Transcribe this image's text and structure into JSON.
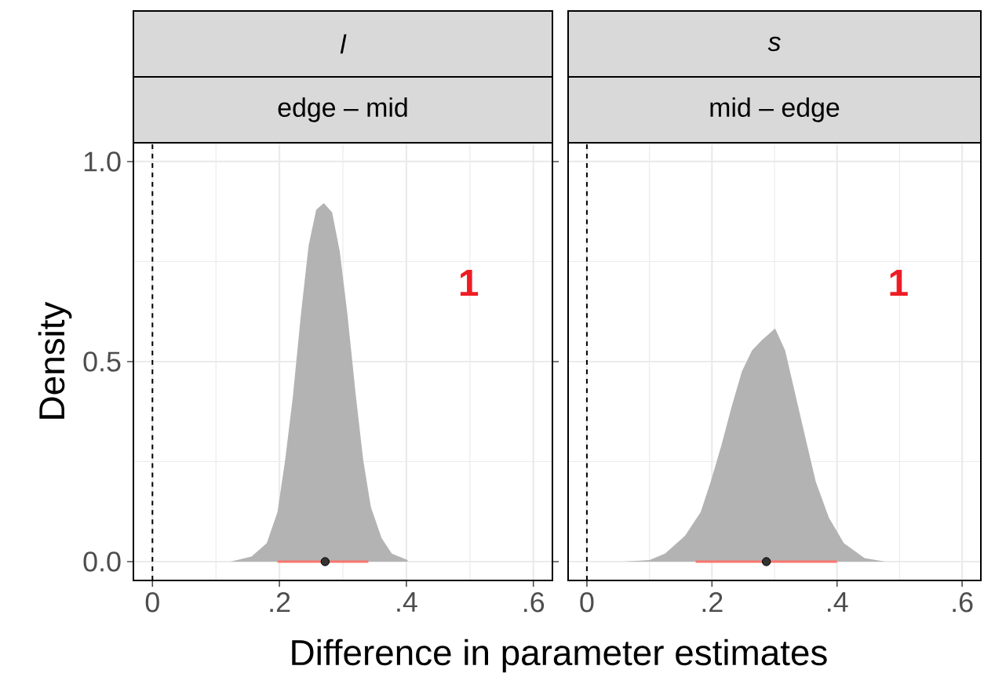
{
  "chart_data": [
    {
      "type": "area",
      "title": "l",
      "subtitle": "edge – mid",
      "ylabel": "Density",
      "xlabel": "Difference in parameter estimates",
      "xlim": [
        -0.03,
        0.63
      ],
      "ylim": [
        -0.047,
        1.047
      ],
      "xticks": [
        0,
        {
          "value": 0.2,
          "label": ".2"
        },
        {
          "value": 0.4,
          "label": ".4"
        },
        {
          "value": 0.6,
          "label": ".6"
        }
      ],
      "yticks": [
        {
          "value": 0,
          "label": "0.0"
        },
        {
          "value": 0.5,
          "label": "0.5"
        },
        {
          "value": 1,
          "label": "1.0"
        }
      ],
      "grid": true,
      "series": [
        {
          "color": "#b3b3b3",
          "x": [
            0.123,
            0.156,
            0.18,
            0.197,
            0.209,
            0.221,
            0.234,
            0.246,
            0.258,
            0.27,
            0.283,
            0.295,
            0.307,
            0.32,
            0.332,
            0.344,
            0.361,
            0.377,
            0.402
          ],
          "values": [
            0,
            0.013,
            0.046,
            0.124,
            0.254,
            0.41,
            0.62,
            0.79,
            0.88,
            0.896,
            0.873,
            0.776,
            0.62,
            0.42,
            0.254,
            0.137,
            0.059,
            0.02,
            0.004
          ]
        },
        {
          "type": "scatter",
          "color": "#333333",
          "marker": "circle",
          "x": [
            0.272
          ],
          "values": [
            0
          ],
          "xerrors": [
            [
              0.197,
              0.34
            ]
          ]
        }
      ],
      "ref_lines": [
        {
          "axis": "x",
          "value": 0,
          "line_style": "dashed",
          "color": "#000000"
        }
      ],
      "annotations": [
        "1"
      ]
    },
    {
      "type": "area",
      "title": "s",
      "subtitle": "mid – edge",
      "tick_labels": "x",
      "xlim": [
        -0.03,
        0.63
      ],
      "ylim": [
        -0.047,
        1.047
      ],
      "xticks": [
        0,
        {
          "value": 0.2,
          "label": ".2"
        },
        {
          "value": 0.4,
          "label": ".4"
        },
        {
          "value": 0.6,
          "label": ".6"
        }
      ],
      "yticks": [
        {
          "value": 0,
          "label": null
        },
        {
          "value": 0.5,
          "label": null
        },
        {
          "value": 1,
          "label": null
        }
      ],
      "grid": true,
      "series": [
        {
          "color": "#b3b3b3",
          "x": [
            0.059,
            0.1,
            0.125,
            0.157,
            0.182,
            0.198,
            0.215,
            0.231,
            0.248,
            0.264,
            0.28,
            0.301,
            0.317,
            0.333,
            0.35,
            0.366,
            0.387,
            0.411,
            0.444,
            0.477
          ],
          "values": [
            0,
            0.004,
            0.02,
            0.065,
            0.124,
            0.2,
            0.29,
            0.385,
            0.476,
            0.528,
            0.554,
            0.583,
            0.528,
            0.42,
            0.306,
            0.2,
            0.11,
            0.046,
            0.009,
            0
          ]
        },
        {
          "type": "scatter",
          "color": "#333333",
          "marker": "circle",
          "x": [
            0.287
          ],
          "values": [
            0
          ],
          "xerrors": [
            [
              0.174,
              0.4
            ]
          ]
        }
      ],
      "ref_lines": [
        {
          "axis": "x",
          "value": 0,
          "line_style": "dashed",
          "color": "#000000"
        }
      ],
      "annotations": [
        "1"
      ]
    }
  ]
}
